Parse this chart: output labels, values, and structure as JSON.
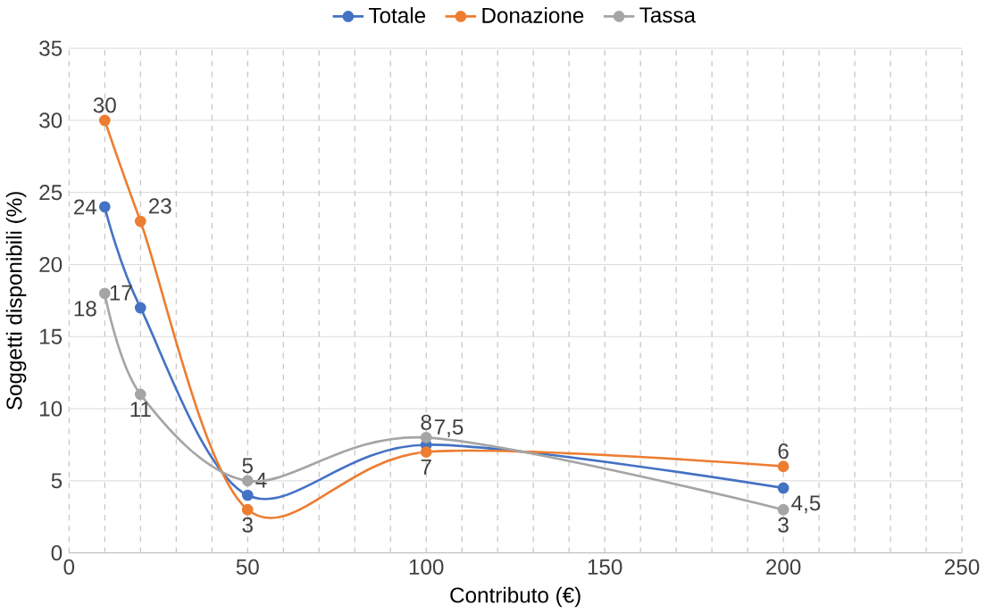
{
  "chart_data": {
    "type": "line",
    "xlabel": "Contributo (€)",
    "ylabel": "Soggetti disponibili (%)",
    "x": [
      10,
      20,
      50,
      100,
      200
    ],
    "series": [
      {
        "name": "Totale",
        "color": "#4472c4",
        "values": [
          24,
          17,
          4,
          7.5,
          4.5
        ],
        "value_labels": [
          "24",
          "17",
          "4",
          "7,5",
          "4,5"
        ]
      },
      {
        "name": "Donazione",
        "color": "#ed7d31",
        "values": [
          30,
          23,
          3,
          7,
          6
        ],
        "value_labels": [
          "30",
          "23",
          "3",
          "7",
          "6"
        ]
      },
      {
        "name": "Tassa",
        "color": "#a5a5a5",
        "values": [
          18,
          11,
          5,
          8,
          3
        ],
        "value_labels": [
          "18",
          "11",
          "5",
          "8",
          "3"
        ]
      }
    ],
    "xlim": [
      0,
      250
    ],
    "ylim": [
      0,
      35
    ],
    "xticks": [
      0,
      50,
      100,
      150,
      200,
      250
    ],
    "yticks": [
      0,
      5,
      10,
      15,
      20,
      25,
      30,
      35
    ],
    "grid": true,
    "legend": "top",
    "marker": "circle",
    "line_style": "solid"
  }
}
